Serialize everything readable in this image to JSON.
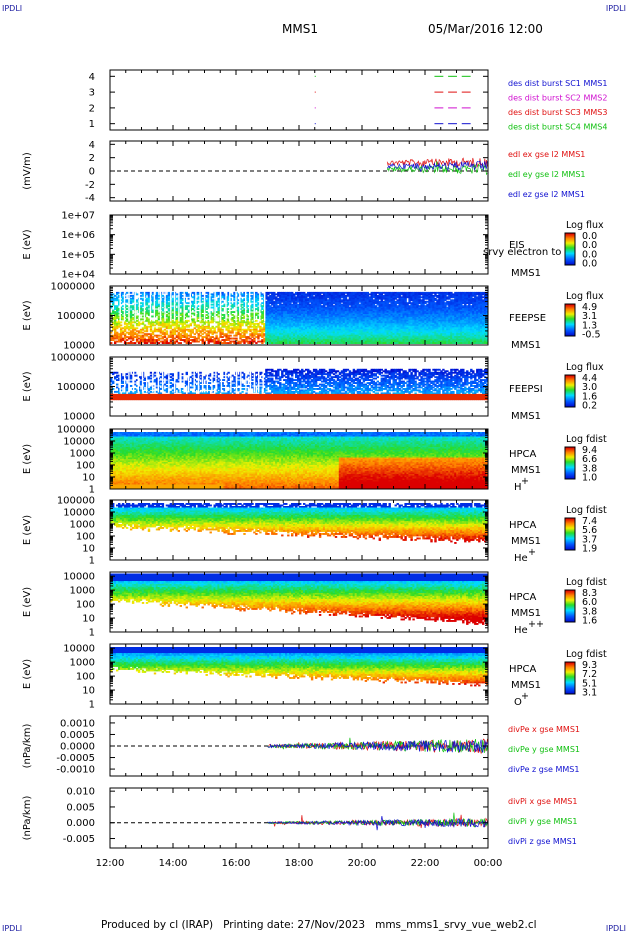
{
  "header": {
    "corner_left_top": "IPDLI",
    "corner_right_top": "IPDLI",
    "corner_left_bottom": "IPDLI",
    "corner_right_bottom": "IPDLI",
    "title": "MMS1",
    "datetime": "05/Mar/2016 12:00"
  },
  "footer": {
    "text": "Produced by cl (IRAP)   Printing date: 27/Nov/2023   mms_mms1_srvy_vue_web2.cl"
  },
  "colors": {
    "red": "#e01010",
    "green": "#10c010",
    "blue": "#1010d0",
    "magenta": "#d010d0",
    "black": "#000000"
  },
  "chart_data": {
    "x_ticks": [
      "12:00",
      "14:00",
      "16:00",
      "18:00",
      "20:00",
      "22:00",
      "00:00"
    ],
    "panels": [
      {
        "id": "burst",
        "type": "line",
        "ylabel": "",
        "y_ticks": [
          "4",
          "3",
          "2",
          "1"
        ],
        "y_values": [
          4,
          3,
          2,
          1
        ],
        "ylim": [
          0.6,
          4.4
        ],
        "legend": [
          {
            "text": "des dist burst SC1 MMS1",
            "color": "#1010d0"
          },
          {
            "text": "des dist burst SC2 MMS2",
            "color": "#d010d0"
          },
          {
            "text": "des dist burst SC3 MMS3",
            "color": "#e01010"
          },
          {
            "text": "des dist burst SC4 MMS4",
            "color": "#10c010"
          }
        ],
        "segments": [
          {
            "y": 4,
            "color": "#10c010",
            "from_h": 22.3,
            "to_h": 23.6
          },
          {
            "y": 3,
            "color": "#e01010",
            "from_h": 22.3,
            "to_h": 23.6
          },
          {
            "y": 2,
            "color": "#d010d0",
            "from_h": 22.3,
            "to_h": 23.6
          },
          {
            "y": 1,
            "color": "#1010d0",
            "from_h": 22.3,
            "to_h": 23.6
          }
        ],
        "dots_h": 18.5
      },
      {
        "id": "edl",
        "type": "line",
        "ylabel": "(mV/m)",
        "y_ticks": [
          "4",
          "2",
          "0",
          "-2",
          "-4"
        ],
        "y_values": [
          4,
          2,
          0,
          -2,
          -4
        ],
        "ylim": [
          -4.5,
          4.5
        ],
        "zero_line": true,
        "data_start_h": 20.8,
        "legend": [
          {
            "text": "edl ex gse l2 MMS1",
            "color": "#e01010"
          },
          {
            "text": "edl ey gse l2 MMS1",
            "color": "#10c010"
          },
          {
            "text": "edl ez gse l2 MMS1",
            "color": "#1010d0"
          }
        ]
      },
      {
        "id": "eis",
        "type": "heatmap",
        "ylabel": "E (eV)",
        "y_ticks": [
          "1e+07",
          "1e+06",
          "1e+05",
          "1e+04"
        ],
        "y_values": [
          7,
          6,
          5,
          4
        ],
        "ylim": [
          4,
          7
        ],
        "cb_title": "Log flux",
        "cb_labels": [
          "0.0",
          "0.0",
          "0.0",
          "0.0"
        ],
        "side_labels": [
          "EIS",
          "MMS1"
        ],
        "overlay_text": "srvy electron to",
        "empty": true
      },
      {
        "id": "feepse",
        "type": "heatmap",
        "ylabel": "E (eV)",
        "y_ticks": [
          "1000000",
          "100000",
          "10000"
        ],
        "y_values": [
          6,
          5,
          4
        ],
        "ylim": [
          4,
          6
        ],
        "cb_title": "Log flux",
        "cb_labels": [
          "4.9",
          "3.1",
          "1.3",
          "-0.5"
        ],
        "side_labels": [
          "FEEPSE",
          "MMS1"
        ],
        "sup_label": ""
      },
      {
        "id": "feepsi",
        "type": "heatmap",
        "ylabel": "E (eV)",
        "y_ticks": [
          "1000000",
          "100000",
          "10000"
        ],
        "y_values": [
          6,
          5,
          4
        ],
        "ylim": [
          4,
          6
        ],
        "cb_title": "Log flux",
        "cb_labels": [
          "4.4",
          "3.0",
          "1.6",
          "0.2"
        ],
        "side_labels": [
          "FEEPSI",
          "MMS1"
        ],
        "sup_label": ""
      },
      {
        "id": "hpca_h",
        "type": "heatmap",
        "ylabel": "E (eV)",
        "y_ticks": [
          "100000",
          "10000",
          "1000",
          "100",
          "10",
          "1"
        ],
        "y_values": [
          5,
          4,
          3,
          2,
          1,
          0
        ],
        "ylim": [
          0,
          5
        ],
        "cb_title": "Log fdist",
        "cb_labels": [
          "9.4",
          "6.6",
          "3.8",
          "1.0"
        ],
        "side_labels": [
          "HPCA",
          "MMS1"
        ],
        "species": "H",
        "species_sup": "+"
      },
      {
        "id": "hpca_he",
        "type": "heatmap",
        "ylabel": "E (eV)",
        "y_ticks": [
          "100000",
          "10000",
          "1000",
          "100",
          "10",
          "1"
        ],
        "y_values": [
          5,
          4,
          3,
          2,
          1,
          0
        ],
        "ylim": [
          0,
          5
        ],
        "cb_title": "Log fdist",
        "cb_labels": [
          "7.4",
          "5.6",
          "3.7",
          "1.9"
        ],
        "side_labels": [
          "HPCA",
          "MMS1"
        ],
        "species": "He",
        "species_sup": "+"
      },
      {
        "id": "hpca_he2",
        "type": "heatmap",
        "ylabel": "E (eV)",
        "y_ticks": [
          "10000",
          "1000",
          "100",
          "10",
          "1"
        ],
        "y_values": [
          4,
          3,
          2,
          1,
          0
        ],
        "ylim": [
          0,
          4.3
        ],
        "cb_title": "Log fdist",
        "cb_labels": [
          "8.3",
          "6.0",
          "3.8",
          "1.6"
        ],
        "side_labels": [
          "HPCA",
          "MMS1"
        ],
        "species": "He",
        "species_sup": "++"
      },
      {
        "id": "hpca_o",
        "type": "heatmap",
        "ylabel": "E (eV)",
        "y_ticks": [
          "10000",
          "1000",
          "100",
          "10",
          "1"
        ],
        "y_values": [
          4,
          3,
          2,
          1,
          0
        ],
        "ylim": [
          0,
          4.3
        ],
        "cb_title": "Log fdist",
        "cb_labels": [
          "9.3",
          "7.2",
          "5.1",
          "3.1"
        ],
        "side_labels": [
          "HPCA",
          "MMS1"
        ],
        "species": "O",
        "species_sup": "+"
      },
      {
        "id": "divpe",
        "type": "line",
        "ylabel": "(nPa/km)",
        "y_ticks": [
          "0.0010",
          "0.0005",
          "0.0000",
          "-0.0005",
          "-0.0010"
        ],
        "y_values": [
          0.001,
          0.0005,
          0,
          -0.0005,
          -0.001
        ],
        "ylim": [
          -0.0013,
          0.0013
        ],
        "zero_line": true,
        "data_start_h": 17.0,
        "legend": [
          {
            "text": "divPe x gse MMS1",
            "color": "#e01010"
          },
          {
            "text": "divPe y gse MMS1",
            "color": "#10c010"
          },
          {
            "text": "divPe z gse MMS1",
            "color": "#1010d0"
          }
        ]
      },
      {
        "id": "divpi",
        "type": "line",
        "ylabel": "(nPa/km)",
        "y_ticks": [
          "0.010",
          "0.005",
          "0.000",
          "-0.005"
        ],
        "y_values": [
          0.01,
          0.005,
          0,
          -0.005
        ],
        "ylim": [
          -0.008,
          0.011
        ],
        "zero_line": true,
        "data_start_h": 17.0,
        "legend": [
          {
            "text": "divPi x gse MMS1",
            "color": "#e01010"
          },
          {
            "text": "divPi y gse MMS1",
            "color": "#10c010"
          },
          {
            "text": "divPi z gse MMS1",
            "color": "#1010d0"
          }
        ]
      }
    ]
  }
}
